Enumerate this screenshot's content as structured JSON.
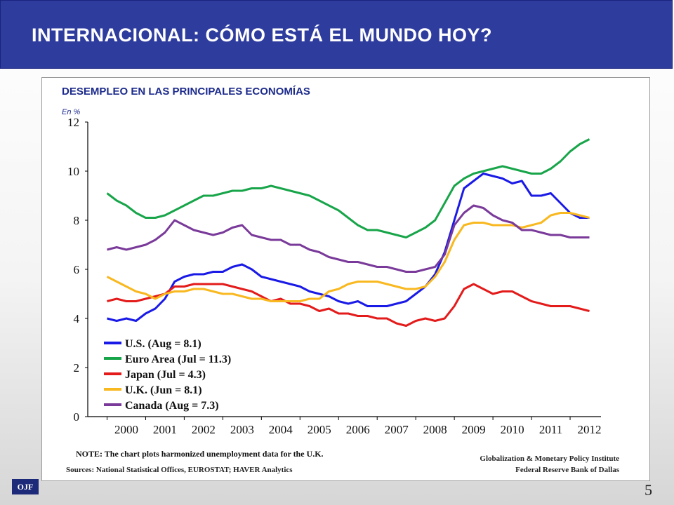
{
  "slide": {
    "title": "INTERNACIONAL: CÓMO ESTÁ EL MUNDO HOY?",
    "logo_text": "OJF",
    "page_number": "5"
  },
  "colors": {
    "header_bg": "#2e3c9e",
    "us": "#1a1ae6",
    "euro": "#18a54a",
    "japan": "#e31b1b",
    "uk": "#f8b820",
    "canada": "#7a3a9a"
  },
  "chart_data": {
    "type": "line",
    "title": "DESEMPLEO EN LAS PRINCIPALES ECONOMÍAS",
    "unit_label": "En %",
    "xlabel": "",
    "ylabel": "",
    "x_ticks": [
      "2000",
      "2001",
      "2002",
      "2003",
      "2004",
      "2005",
      "2006",
      "2007",
      "2008",
      "2009",
      "2010",
      "2011",
      "2012"
    ],
    "xlim": [
      1999.5,
      2012.8
    ],
    "ylim": [
      0,
      12
    ],
    "y_ticks": [
      "0",
      "2",
      "4",
      "6",
      "8",
      "10",
      "12"
    ],
    "grid": false,
    "legend_position": "bottom-left",
    "x": [
      2000.0,
      2000.25,
      2000.5,
      2000.75,
      2001.0,
      2001.25,
      2001.5,
      2001.75,
      2002.0,
      2002.25,
      2002.5,
      2002.75,
      2003.0,
      2003.25,
      2003.5,
      2003.75,
      2004.0,
      2004.25,
      2004.5,
      2004.75,
      2005.0,
      2005.25,
      2005.5,
      2005.75,
      2006.0,
      2006.25,
      2006.5,
      2006.75,
      2007.0,
      2007.25,
      2007.5,
      2007.75,
      2008.0,
      2008.25,
      2008.5,
      2008.75,
      2009.0,
      2009.25,
      2009.5,
      2009.75,
      2010.0,
      2010.25,
      2010.5,
      2010.75,
      2011.0,
      2011.25,
      2011.5,
      2011.75,
      2012.0,
      2012.25,
      2012.5
    ],
    "series": [
      {
        "name": "U.S. (Aug = 8.1)",
        "color": "#1a1ae6",
        "values": [
          4.0,
          3.9,
          4.0,
          3.9,
          4.2,
          4.4,
          4.8,
          5.5,
          5.7,
          5.8,
          5.8,
          5.9,
          5.9,
          6.1,
          6.2,
          6.0,
          5.7,
          5.6,
          5.5,
          5.4,
          5.3,
          5.1,
          5.0,
          4.9,
          4.7,
          4.6,
          4.7,
          4.5,
          4.5,
          4.5,
          4.6,
          4.7,
          5.0,
          5.3,
          5.8,
          6.7,
          8.0,
          9.3,
          9.6,
          9.9,
          9.8,
          9.7,
          9.5,
          9.6,
          9.0,
          9.0,
          9.1,
          8.7,
          8.3,
          8.1,
          8.1
        ]
      },
      {
        "name": "Euro Area (Jul = 11.3)",
        "color": "#18a54a",
        "values": [
          9.1,
          8.8,
          8.6,
          8.3,
          8.1,
          8.1,
          8.2,
          8.4,
          8.6,
          8.8,
          9.0,
          9.0,
          9.1,
          9.2,
          9.2,
          9.3,
          9.3,
          9.4,
          9.3,
          9.2,
          9.1,
          9.0,
          8.8,
          8.6,
          8.4,
          8.1,
          7.8,
          7.6,
          7.6,
          7.5,
          7.4,
          7.3,
          7.5,
          7.7,
          8.0,
          8.7,
          9.4,
          9.7,
          9.9,
          10.0,
          10.1,
          10.2,
          10.1,
          10.0,
          9.9,
          9.9,
          10.1,
          10.4,
          10.8,
          11.1,
          11.3
        ]
      },
      {
        "name": "Japan (Jul = 4.3)",
        "color": "#e31b1b",
        "values": [
          4.7,
          4.8,
          4.7,
          4.7,
          4.8,
          4.9,
          5.0,
          5.3,
          5.3,
          5.4,
          5.4,
          5.4,
          5.4,
          5.3,
          5.2,
          5.1,
          4.9,
          4.7,
          4.8,
          4.6,
          4.6,
          4.5,
          4.3,
          4.4,
          4.2,
          4.2,
          4.1,
          4.1,
          4.0,
          4.0,
          3.8,
          3.7,
          3.9,
          4.0,
          3.9,
          4.0,
          4.5,
          5.2,
          5.4,
          5.2,
          5.0,
          5.1,
          5.1,
          4.9,
          4.7,
          4.6,
          4.5,
          4.5,
          4.5,
          4.4,
          4.3
        ]
      },
      {
        "name": "U.K. (Jun = 8.1)",
        "color": "#f8b820",
        "values": [
          5.7,
          5.5,
          5.3,
          5.1,
          5.0,
          4.8,
          5.0,
          5.1,
          5.1,
          5.2,
          5.2,
          5.1,
          5.0,
          5.0,
          4.9,
          4.8,
          4.8,
          4.7,
          4.7,
          4.7,
          4.7,
          4.8,
          4.8,
          5.1,
          5.2,
          5.4,
          5.5,
          5.5,
          5.5,
          5.4,
          5.3,
          5.2,
          5.2,
          5.3,
          5.7,
          6.3,
          7.2,
          7.8,
          7.9,
          7.9,
          7.8,
          7.8,
          7.8,
          7.7,
          7.8,
          7.9,
          8.2,
          8.3,
          8.3,
          8.2,
          8.1
        ]
      },
      {
        "name": "Canada (Aug = 7.3)",
        "color": "#7a3a9a",
        "values": [
          6.8,
          6.9,
          6.8,
          6.9,
          7.0,
          7.2,
          7.5,
          8.0,
          7.8,
          7.6,
          7.5,
          7.4,
          7.5,
          7.7,
          7.8,
          7.4,
          7.3,
          7.2,
          7.2,
          7.0,
          7.0,
          6.8,
          6.7,
          6.5,
          6.4,
          6.3,
          6.3,
          6.2,
          6.1,
          6.1,
          6.0,
          5.9,
          5.9,
          6.0,
          6.1,
          6.6,
          7.8,
          8.3,
          8.6,
          8.5,
          8.2,
          8.0,
          7.9,
          7.6,
          7.6,
          7.5,
          7.4,
          7.4,
          7.3,
          7.3,
          7.3
        ]
      }
    ],
    "note": "NOTE: The chart plots harmonized unemployment data for the U.K.",
    "sources": "Sources: National Statistical Offices, EUROSTAT; HAVER Analytics",
    "credit_line1": "Globalization & Monetary Policy Institute",
    "credit_line2": "Federal Reserve Bank of Dallas"
  }
}
